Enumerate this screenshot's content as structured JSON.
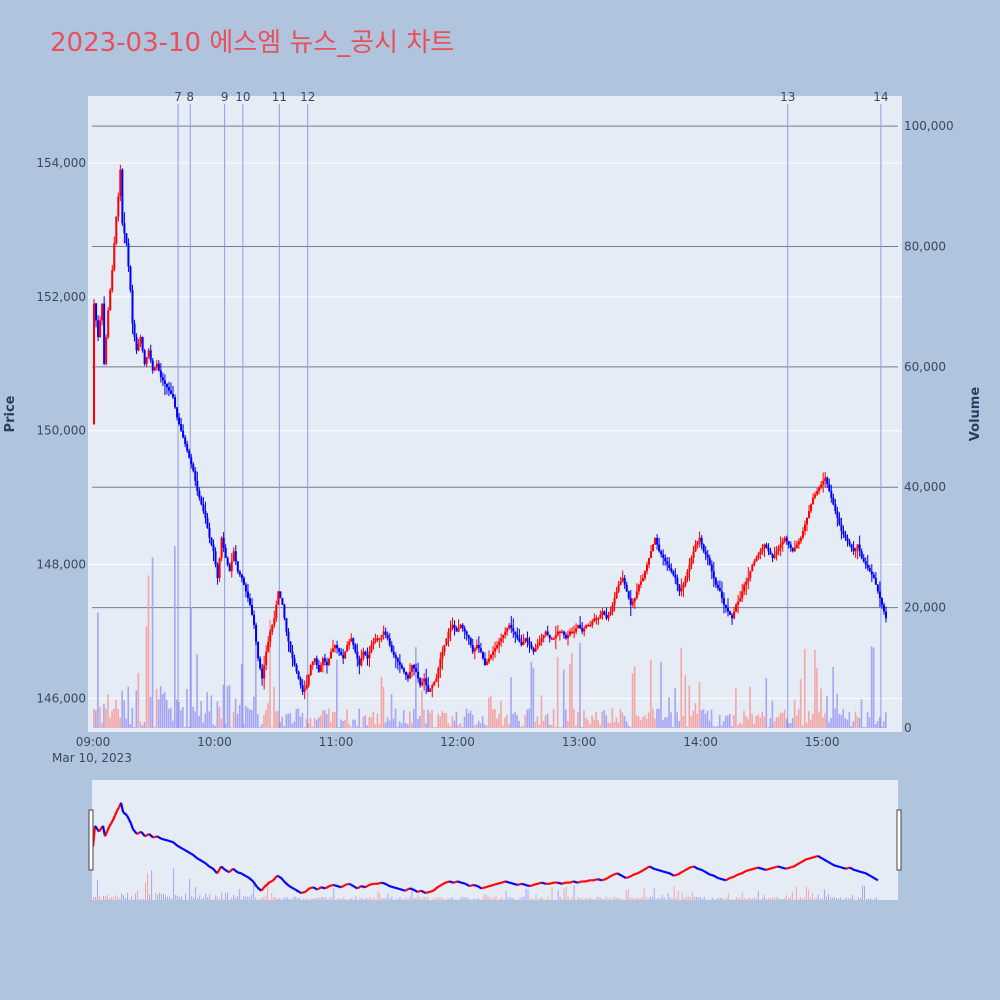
{
  "title": "2023-03-10 에스엠 뉴스_공시 차트",
  "colors": {
    "up": "#ff0000",
    "down": "#0000ff",
    "up_vol": "#f4a6a6",
    "down_vol": "#a6a6f4",
    "bg": "#b0c4de",
    "plot_bg": "#e5ecf6"
  },
  "chart_data": {
    "type": "candlestick",
    "title": "2023-03-10 에스엠 뉴스_공시 차트",
    "date_label": "Mar 10, 2023",
    "x_ticks": [
      "09:00",
      "10:00",
      "11:00",
      "12:00",
      "13:00",
      "14:00",
      "15:00"
    ],
    "y_label": "Price",
    "y_ticks": [
      "146,000",
      "148,000",
      "150,000",
      "152,000",
      "154,000"
    ],
    "y_range": [
      145500,
      155000
    ],
    "y2_label": "Volume",
    "y2_ticks": [
      "0",
      "20,000",
      "40,000",
      "60,000",
      "80,000",
      "100,000"
    ],
    "y2_range": [
      0,
      105000
    ],
    "x_range_minutes": [
      0,
      392
    ],
    "price_path": [
      [
        0,
        150100
      ],
      [
        1,
        151900
      ],
      [
        3,
        151400
      ],
      [
        5,
        151900
      ],
      [
        6,
        151000
      ],
      [
        8,
        151800
      ],
      [
        10,
        152400
      ],
      [
        12,
        153200
      ],
      [
        13,
        153500
      ],
      [
        14,
        153900
      ],
      [
        15,
        153100
      ],
      [
        17,
        152800
      ],
      [
        19,
        152100
      ],
      [
        20,
        151600
      ],
      [
        22,
        151200
      ],
      [
        24,
        151400
      ],
      [
        26,
        151000
      ],
      [
        28,
        151200
      ],
      [
        30,
        150900
      ],
      [
        32,
        151000
      ],
      [
        34,
        150800
      ],
      [
        36,
        150700
      ],
      [
        38,
        150600
      ],
      [
        40,
        150500
      ],
      [
        42,
        150200
      ],
      [
        44,
        150000
      ],
      [
        46,
        149800
      ],
      [
        48,
        149600
      ],
      [
        50,
        149400
      ],
      [
        52,
        149100
      ],
      [
        54,
        148900
      ],
      [
        56,
        148700
      ],
      [
        58,
        148400
      ],
      [
        60,
        148200
      ],
      [
        62,
        147800
      ],
      [
        64,
        148400
      ],
      [
        66,
        148100
      ],
      [
        68,
        147900
      ],
      [
        70,
        148200
      ],
      [
        72,
        147900
      ],
      [
        74,
        147800
      ],
      [
        76,
        147600
      ],
      [
        78,
        147400
      ],
      [
        80,
        147100
      ],
      [
        82,
        146600
      ],
      [
        84,
        146300
      ],
      [
        86,
        146700
      ],
      [
        88,
        147000
      ],
      [
        90,
        147200
      ],
      [
        92,
        147600
      ],
      [
        94,
        147400
      ],
      [
        96,
        147000
      ],
      [
        98,
        146700
      ],
      [
        100,
        146500
      ],
      [
        102,
        146300
      ],
      [
        104,
        146100
      ],
      [
        106,
        146200
      ],
      [
        108,
        146500
      ],
      [
        110,
        146600
      ],
      [
        112,
        146400
      ],
      [
        114,
        146600
      ],
      [
        116,
        146500
      ],
      [
        118,
        146700
      ],
      [
        120,
        146800
      ],
      [
        122,
        146700
      ],
      [
        124,
        146600
      ],
      [
        126,
        146800
      ],
      [
        128,
        146900
      ],
      [
        130,
        146700
      ],
      [
        132,
        146500
      ],
      [
        134,
        146700
      ],
      [
        136,
        146600
      ],
      [
        138,
        146800
      ],
      [
        140,
        146900
      ],
      [
        142,
        146900
      ],
      [
        144,
        147000
      ],
      [
        146,
        146900
      ],
      [
        148,
        146700
      ],
      [
        150,
        146600
      ],
      [
        152,
        146500
      ],
      [
        154,
        146400
      ],
      [
        156,
        146300
      ],
      [
        158,
        146500
      ],
      [
        160,
        146400
      ],
      [
        162,
        146200
      ],
      [
        164,
        146300
      ],
      [
        166,
        146100
      ],
      [
        168,
        146200
      ],
      [
        170,
        146300
      ],
      [
        172,
        146600
      ],
      [
        174,
        146800
      ],
      [
        176,
        147000
      ],
      [
        178,
        147100
      ],
      [
        180,
        147000
      ],
      [
        182,
        147100
      ],
      [
        184,
        147000
      ],
      [
        186,
        146900
      ],
      [
        188,
        146700
      ],
      [
        190,
        146800
      ],
      [
        192,
        146700
      ],
      [
        194,
        146500
      ],
      [
        196,
        146600
      ],
      [
        198,
        146700
      ],
      [
        200,
        146800
      ],
      [
        202,
        146900
      ],
      [
        204,
        147000
      ],
      [
        206,
        147100
      ],
      [
        208,
        147000
      ],
      [
        210,
        146900
      ],
      [
        212,
        146800
      ],
      [
        214,
        146900
      ],
      [
        216,
        146800
      ],
      [
        218,
        146700
      ],
      [
        220,
        146800
      ],
      [
        222,
        146900
      ],
      [
        224,
        147000
      ],
      [
        226,
        146900
      ],
      [
        228,
        146900
      ],
      [
        230,
        147000
      ],
      [
        232,
        147000
      ],
      [
        234,
        146900
      ],
      [
        236,
        147000
      ],
      [
        238,
        147000
      ],
      [
        240,
        147100
      ],
      [
        242,
        147000
      ],
      [
        244,
        147100
      ],
      [
        246,
        147100
      ],
      [
        248,
        147200
      ],
      [
        250,
        147200
      ],
      [
        252,
        147300
      ],
      [
        254,
        147200
      ],
      [
        256,
        147300
      ],
      [
        258,
        147500
      ],
      [
        260,
        147700
      ],
      [
        262,
        147800
      ],
      [
        264,
        147600
      ],
      [
        266,
        147400
      ],
      [
        268,
        147500
      ],
      [
        270,
        147700
      ],
      [
        272,
        147800
      ],
      [
        274,
        148000
      ],
      [
        276,
        148200
      ],
      [
        278,
        148400
      ],
      [
        280,
        148200
      ],
      [
        282,
        148100
      ],
      [
        284,
        148000
      ],
      [
        286,
        147900
      ],
      [
        288,
        147800
      ],
      [
        290,
        147600
      ],
      [
        292,
        147700
      ],
      [
        294,
        147900
      ],
      [
        296,
        148100
      ],
      [
        298,
        148300
      ],
      [
        300,
        148400
      ],
      [
        302,
        148200
      ],
      [
        304,
        148100
      ],
      [
        306,
        147900
      ],
      [
        308,
        147700
      ],
      [
        310,
        147600
      ],
      [
        312,
        147400
      ],
      [
        314,
        147300
      ],
      [
        316,
        147200
      ],
      [
        318,
        147400
      ],
      [
        320,
        147500
      ],
      [
        322,
        147700
      ],
      [
        324,
        147800
      ],
      [
        326,
        148000
      ],
      [
        328,
        148100
      ],
      [
        330,
        148200
      ],
      [
        332,
        148300
      ],
      [
        334,
        148200
      ],
      [
        336,
        148100
      ],
      [
        338,
        148200
      ],
      [
        340,
        148300
      ],
      [
        342,
        148400
      ],
      [
        344,
        148300
      ],
      [
        346,
        148200
      ],
      [
        348,
        148300
      ],
      [
        350,
        148400
      ],
      [
        352,
        148600
      ],
      [
        354,
        148800
      ],
      [
        356,
        149000
      ],
      [
        358,
        149100
      ],
      [
        360,
        149200
      ],
      [
        362,
        149300
      ],
      [
        364,
        149100
      ],
      [
        366,
        148900
      ],
      [
        368,
        148700
      ],
      [
        370,
        148500
      ],
      [
        372,
        148400
      ],
      [
        374,
        148300
      ],
      [
        376,
        148200
      ],
      [
        378,
        148300
      ],
      [
        380,
        148100
      ],
      [
        382,
        148000
      ],
      [
        384,
        147900
      ],
      [
        386,
        147800
      ],
      [
        388,
        147600
      ],
      [
        390,
        147400
      ],
      [
        392,
        147200
      ]
    ],
    "event_markers": [
      {
        "label": "7",
        "minute": 42
      },
      {
        "label": "8",
        "minute": 48
      },
      {
        "label": "9",
        "minute": 65
      },
      {
        "label": "10",
        "minute": 74
      },
      {
        "label": "11",
        "minute": 92
      },
      {
        "label": "12",
        "minute": 106
      },
      {
        "label": "13",
        "minute": 343
      },
      {
        "label": "14",
        "minute": 389
      }
    ]
  }
}
